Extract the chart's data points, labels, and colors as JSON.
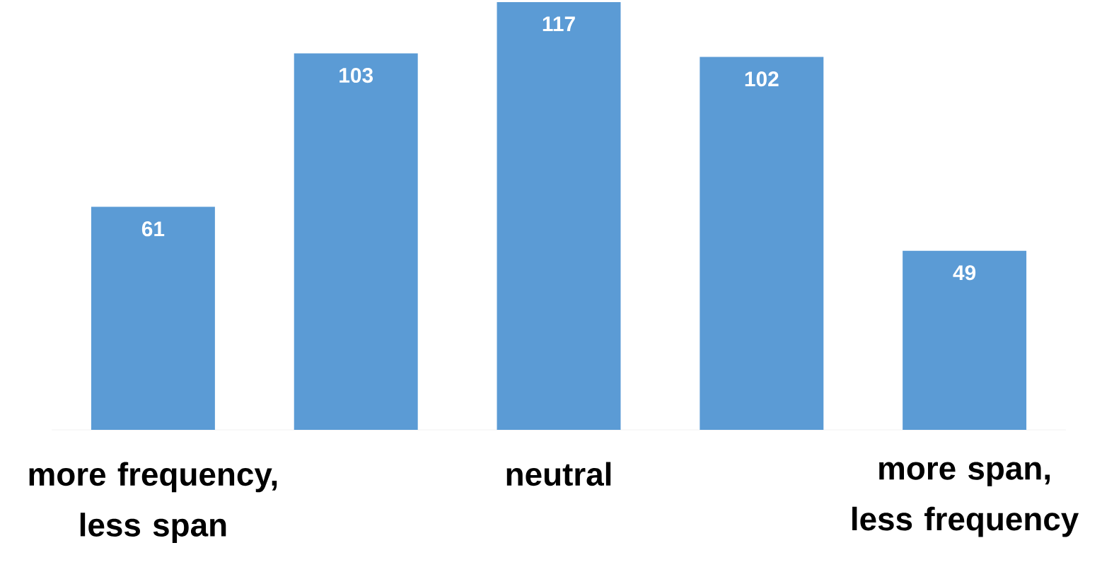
{
  "chart_data": {
    "type": "bar",
    "categories": [
      "more frequency, less span",
      null,
      "neutral",
      null,
      "more span, less frequency"
    ],
    "values": [
      61,
      103,
      117,
      102,
      49
    ],
    "color": "#5b9bd5",
    "data_labels": true
  }
}
